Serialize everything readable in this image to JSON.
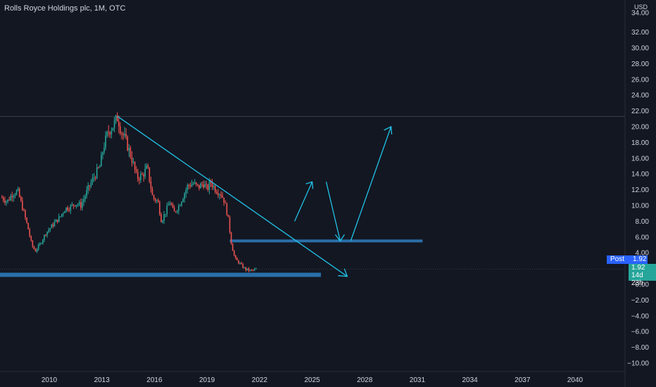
{
  "header": {
    "title": "Rolls Royce Holdings plc, 1M, OTC"
  },
  "price_axis": {
    "currency": "USD"
  },
  "post_label": {
    "label": "Post",
    "value": "1.92"
  },
  "last_price": {
    "value": "1.92",
    "countdown": "14d 23h"
  },
  "colors": {
    "up": "#26a69a",
    "down": "#ef5350",
    "trendline": "#21c3e8",
    "zone": "#2a6fa8",
    "background": "#131722"
  },
  "chart_data": {
    "type": "candlestick",
    "title": "Rolls Royce Holdings plc, 1M, OTC",
    "y_ticks": [
      "34.00",
      "32.00",
      "30.00",
      "28.00",
      "26.00",
      "24.00",
      "22.00",
      "20.00",
      "18.00",
      "16.00",
      "14.00",
      "12.00",
      "10.00",
      "8.00",
      "6.00",
      "4.00",
      "0.00",
      "−2.00",
      "−4.00",
      "−6.00",
      "−8.00",
      "−10.00"
    ],
    "x_ticks": [
      "2010",
      "2013",
      "2016",
      "2019",
      "2022",
      "2025",
      "2028",
      "2031",
      "2034",
      "2037",
      "2040"
    ],
    "ylim": [
      -10.5,
      34.5
    ],
    "close_points": [
      [
        2007.3,
        11.0
      ],
      [
        2007.6,
        10.5
      ],
      [
        2007.9,
        11.5
      ],
      [
        2008.2,
        11.8
      ],
      [
        2008.5,
        9.5
      ],
      [
        2008.8,
        7.0
      ],
      [
        2009.0,
        5.0
      ],
      [
        2009.2,
        4.2
      ],
      [
        2009.5,
        5.2
      ],
      [
        2009.8,
        6.5
      ],
      [
        2010.0,
        7.0
      ],
      [
        2010.3,
        7.8
      ],
      [
        2010.6,
        8.5
      ],
      [
        2010.9,
        9.6
      ],
      [
        2011.2,
        9.8
      ],
      [
        2011.5,
        10.3
      ],
      [
        2011.8,
        10.0
      ],
      [
        2012.0,
        11.0
      ],
      [
        2012.3,
        12.5
      ],
      [
        2012.6,
        13.8
      ],
      [
        2012.9,
        15.0
      ],
      [
        2013.1,
        17.5
      ],
      [
        2013.4,
        19.5
      ],
      [
        2013.7,
        20.3
      ],
      [
        2013.9,
        21.2
      ],
      [
        2014.1,
        19.5
      ],
      [
        2014.4,
        18.0
      ],
      [
        2014.7,
        16.0
      ],
      [
        2015.0,
        13.5
      ],
      [
        2015.3,
        13.8
      ],
      [
        2015.6,
        14.8
      ],
      [
        2015.9,
        11.0
      ],
      [
        2016.2,
        10.5
      ],
      [
        2016.4,
        8.0
      ],
      [
        2016.7,
        9.5
      ],
      [
        2016.9,
        10.5
      ],
      [
        2017.1,
        9.0
      ],
      [
        2017.4,
        10.0
      ],
      [
        2017.7,
        11.5
      ],
      [
        2017.9,
        12.5
      ],
      [
        2018.2,
        12.8
      ],
      [
        2018.5,
        12.3
      ],
      [
        2018.8,
        12.8
      ],
      [
        2019.0,
        12.0
      ],
      [
        2019.2,
        13.0
      ],
      [
        2019.5,
        12.0
      ],
      [
        2019.8,
        11.5
      ],
      [
        2020.0,
        10.5
      ],
      [
        2020.2,
        8.5
      ],
      [
        2020.4,
        5.0
      ],
      [
        2020.6,
        3.2
      ],
      [
        2020.8,
        2.8
      ],
      [
        2021.0,
        2.3
      ],
      [
        2021.2,
        1.9
      ],
      [
        2021.5,
        1.7
      ],
      [
        2021.8,
        1.9
      ]
    ],
    "annotations": {
      "horizontal_lines": [
        21.3
      ],
      "zones": [
        {
          "value": 5.5,
          "from": 2020.3,
          "to": 2031.3
        },
        {
          "value": 1.2,
          "from": 2006.8,
          "to": 2025.5
        }
      ],
      "trendline": [
        [
          2013.9,
          21.3
        ],
        [
          2027.0,
          1.0
        ]
      ],
      "projected_path": [
        [
          2024.0,
          8.0
        ],
        [
          2025.0,
          13.0
        ],
        [
          2025.8,
          13.0
        ],
        [
          2026.6,
          5.5
        ],
        [
          2027.2,
          5.5
        ],
        [
          2029.5,
          20.0
        ]
      ]
    },
    "last_value": 1.92
  }
}
